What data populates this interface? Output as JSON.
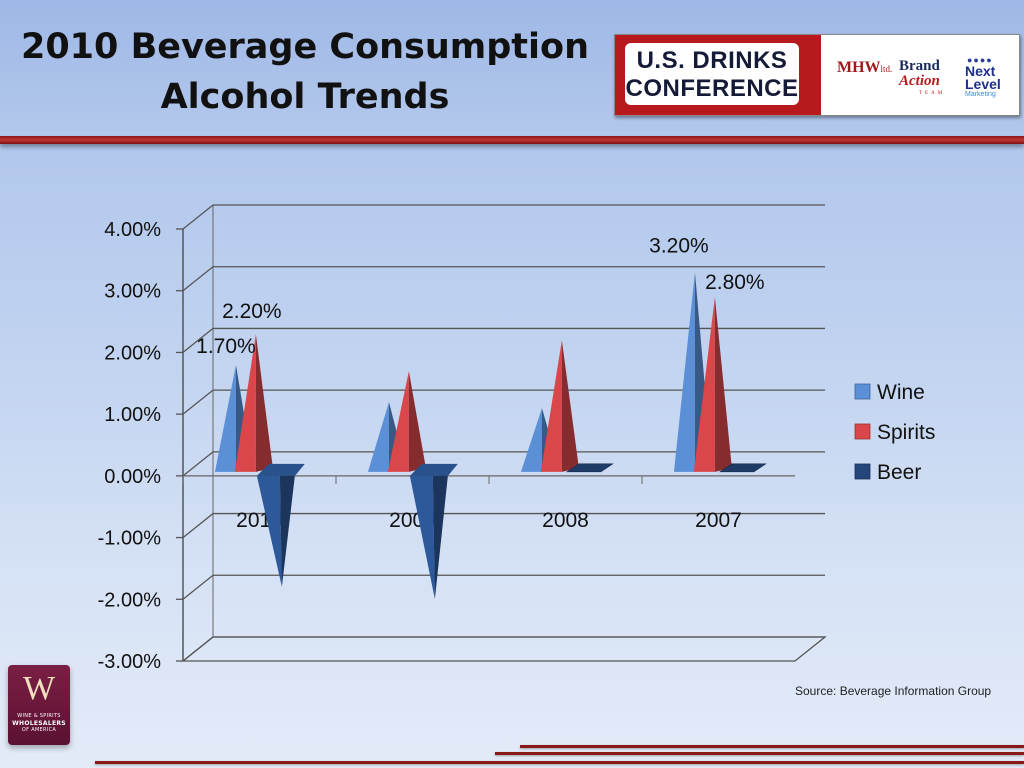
{
  "slide": {
    "title_line1": "2010 Beverage Consumption",
    "title_line2": "Alcohol Trends",
    "source_text": "Source: Beverage Information Group"
  },
  "logos": {
    "usdc_line1": "U.S. DRINKS",
    "usdc_line2": "CONFERENCE",
    "mhw": "MHW",
    "mhw_suffix": "ltd.",
    "brand_line1": "Brand",
    "brand_line2": "Action",
    "brand_sub": "TEAM",
    "nextlevel_line1": "Next",
    "nextlevel_line2": "Level",
    "nextlevel_sub": "Marketing",
    "wswa_letter": "W",
    "wswa_line1": "WINE & SPIRITS",
    "wswa_line2": "WHOLESALERS",
    "wswa_line3": "OF AMERICA"
  },
  "colors": {
    "wine": "#5b8fd6",
    "spirits": "#d9474a",
    "beer": "#24467a",
    "accent_red": "#b8191d"
  },
  "chart_data": {
    "type": "bar",
    "style": "3d-cone",
    "categories": [
      "2010",
      "2009",
      "2008",
      "2007"
    ],
    "series": [
      {
        "name": "Wine",
        "values": [
          1.7,
          1.1,
          1.0,
          3.2
        ]
      },
      {
        "name": "Spirits",
        "values": [
          2.2,
          1.6,
          2.1,
          2.8
        ]
      },
      {
        "name": "Beer",
        "values": [
          -1.7,
          -1.9,
          0.0,
          0.0
        ]
      }
    ],
    "data_labels": [
      {
        "series": "Wine",
        "category": "2010",
        "text": "1.70%"
      },
      {
        "series": "Spirits",
        "category": "2010",
        "text": "2.20%"
      },
      {
        "series": "Wine",
        "category": "2007",
        "text": "3.20%"
      },
      {
        "series": "Spirits",
        "category": "2007",
        "text": "2.80%"
      }
    ],
    "yticks": [
      "4.00%",
      "3.00%",
      "2.00%",
      "1.00%",
      "0.00%",
      "-1.00%",
      "-2.00%",
      "-3.00%"
    ],
    "ytick_values": [
      4,
      3,
      2,
      1,
      0,
      -1,
      -2,
      -3
    ],
    "ylim": [
      -3,
      4
    ],
    "grid": true,
    "legend_position": "right"
  }
}
